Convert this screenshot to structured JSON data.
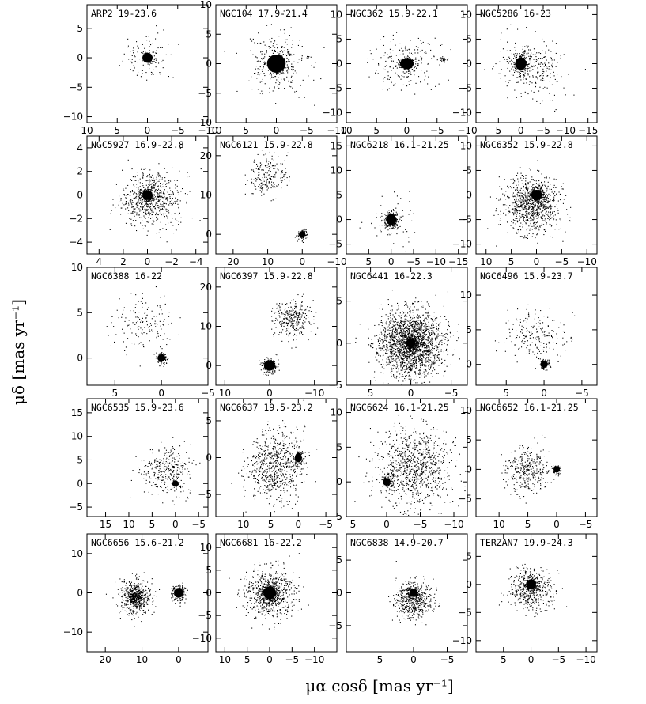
{
  "figure": {
    "ylabel": "μδ [mas yr⁻¹]",
    "xlabel": "μα cosδ [mas yr⁻¹]"
  },
  "chart_data": [
    {
      "type": "scatter",
      "label": "ARP2 19-23.6",
      "xlim": [
        10,
        -10
      ],
      "ylim": [
        -11,
        9
      ],
      "xticks": [
        10,
        5,
        0,
        -5,
        -10
      ],
      "yticks": [
        5,
        0,
        -5,
        -10
      ],
      "clusters": [
        {
          "x": 0,
          "y": 0,
          "r": 1.2,
          "n": 60
        },
        {
          "x": 0,
          "y": 0,
          "r": 4,
          "n": 90
        }
      ]
    },
    {
      "type": "scatter",
      "label": "NGC104 17.9-21.4",
      "xlim": [
        10,
        -10
      ],
      "ylim": [
        -10,
        10
      ],
      "xticks": [
        10,
        5,
        0,
        -5,
        -10
      ],
      "yticks": [
        10,
        5,
        0,
        -5,
        -10
      ],
      "clusters": [
        {
          "x": 0,
          "y": 0,
          "r": 2.2,
          "n": 200
        },
        {
          "x": -5.2,
          "y": 1.2,
          "r": 0.4,
          "n": 8
        },
        {
          "x": 0,
          "y": 0,
          "r": 5,
          "n": 200
        }
      ]
    },
    {
      "type": "scatter",
      "label": "NGC362 15.9-22.1",
      "xlim": [
        10,
        -10
      ],
      "ylim": [
        -12,
        12
      ],
      "xticks": [
        10,
        5,
        0,
        -5,
        -10
      ],
      "yticks": [
        10,
        5,
        0,
        -5,
        -10
      ],
      "clusters": [
        {
          "x": 0,
          "y": 0,
          "r": 1.6,
          "n": 120
        },
        {
          "x": -6,
          "y": 1,
          "r": 0.5,
          "n": 25
        },
        {
          "x": 0,
          "y": 0,
          "r": 5,
          "n": 200
        }
      ]
    },
    {
      "type": "scatter",
      "label": "NGC5286 16-23",
      "xlim": [
        10,
        -17
      ],
      "ylim": [
        -12,
        12
      ],
      "xticks": [
        5,
        0,
        -5,
        -10,
        -15
      ],
      "yticks": [
        10,
        5,
        0,
        -5,
        -10
      ],
      "clusters": [
        {
          "x": 0,
          "y": 0,
          "r": 1.8,
          "n": 150
        },
        {
          "x": -4,
          "y": -1.5,
          "r": 5,
          "n": 160
        },
        {
          "x": 0,
          "y": 0,
          "r": 5,
          "n": 150
        }
      ]
    },
    {
      "type": "scatter",
      "label": "NGC5927 16.9-22.8",
      "xlim": [
        5,
        -5
      ],
      "ylim": [
        -5,
        5
      ],
      "xticks": [
        4,
        2,
        0,
        -2,
        -4
      ],
      "yticks": [
        4,
        2,
        0,
        -2,
        -4
      ],
      "clusters": [
        {
          "x": 0,
          "y": 0,
          "r": 0.6,
          "n": 150
        },
        {
          "x": -0.3,
          "y": -0.3,
          "r": 2.2,
          "n": 600
        }
      ]
    },
    {
      "type": "scatter",
      "label": "NGC6121 15.9-22.8",
      "xlim": [
        25,
        -10
      ],
      "ylim": [
        -5,
        25
      ],
      "xticks": [
        20,
        10,
        0,
        -10
      ],
      "yticks": [
        20,
        10,
        0
      ],
      "clusters": [
        {
          "x": 0,
          "y": 0,
          "r": 1.2,
          "n": 100
        },
        {
          "x": 10,
          "y": 15,
          "r": 5,
          "n": 200
        }
      ]
    },
    {
      "type": "scatter",
      "label": "NGC6218 16.1-21.25",
      "xlim": [
        10,
        -17
      ],
      "ylim": [
        -7,
        17
      ],
      "xticks": [
        5,
        0,
        -5,
        -10,
        -15
      ],
      "yticks": [
        15,
        10,
        5,
        0,
        -5
      ],
      "clusters": [
        {
          "x": 0,
          "y": 0,
          "r": 1.6,
          "n": 220
        },
        {
          "x": 0,
          "y": 0,
          "r": 5,
          "n": 60
        }
      ]
    },
    {
      "type": "scatter",
      "label": "NGC6352 15.9-22.8",
      "xlim": [
        12,
        -12
      ],
      "ylim": [
        -12,
        12
      ],
      "xticks": [
        10,
        5,
        0,
        -5,
        -10
      ],
      "yticks": [
        10,
        5,
        0,
        -5,
        -10
      ],
      "clusters": [
        {
          "x": 0,
          "y": 0,
          "r": 1.5,
          "n": 140
        },
        {
          "x": 1,
          "y": -2,
          "r": 5,
          "n": 900
        }
      ]
    },
    {
      "type": "scatter",
      "label": "NGC6388 16-22",
      "xlim": [
        8,
        -5
      ],
      "ylim": [
        -3,
        10
      ],
      "xticks": [
        5,
        0,
        -5
      ],
      "yticks": [
        10,
        5,
        0
      ],
      "clusters": [
        {
          "x": 0,
          "y": 0,
          "r": 0.6,
          "n": 80
        },
        {
          "x": 2,
          "y": 4,
          "r": 3,
          "n": 150
        }
      ]
    },
    {
      "type": "scatter",
      "label": "NGC6397 15.9-22.8",
      "xlim": [
        12,
        -15
      ],
      "ylim": [
        -5,
        25
      ],
      "xticks": [
        10,
        0,
        -10
      ],
      "yticks": [
        20,
        10,
        0
      ],
      "clusters": [
        {
          "x": 0,
          "y": 0,
          "r": 1.8,
          "n": 160
        },
        {
          "x": -5,
          "y": 12,
          "r": 4,
          "n": 300
        }
      ]
    },
    {
      "type": "scatter",
      "label": "NGC6441 16-22.3",
      "xlim": [
        8,
        -7
      ],
      "ylim": [
        -5,
        9
      ],
      "xticks": [
        5,
        0,
        -5
      ],
      "yticks": [
        5,
        0,
        -5
      ],
      "clusters": [
        {
          "x": 0,
          "y": 0,
          "r": 0.8,
          "n": 180
        },
        {
          "x": 0,
          "y": 0,
          "r": 3.5,
          "n": 2000
        }
      ]
    },
    {
      "type": "scatter",
      "label": "NGC6496 15.9-23.7",
      "xlim": [
        9,
        -7
      ],
      "ylim": [
        -3,
        14
      ],
      "xticks": [
        5,
        0,
        -5
      ],
      "yticks": [
        10,
        5,
        0
      ],
      "clusters": [
        {
          "x": 0,
          "y": 0,
          "r": 0.7,
          "n": 60
        },
        {
          "x": 1,
          "y": 4,
          "r": 3.5,
          "n": 200
        }
      ]
    },
    {
      "type": "scatter",
      "label": "NGC6535 15.9-23.6",
      "xlim": [
        19,
        -7
      ],
      "ylim": [
        -7,
        18
      ],
      "xticks": [
        15,
        10,
        5,
        0,
        -5
      ],
      "yticks": [
        15,
        10,
        5,
        0,
        -5
      ],
      "clusters": [
        {
          "x": 0,
          "y": 0,
          "r": 0.8,
          "n": 40
        },
        {
          "x": 2,
          "y": 3,
          "r": 5,
          "n": 300
        }
      ]
    },
    {
      "type": "scatter",
      "label": "NGC6637 19.5-23.2",
      "xlim": [
        15,
        -7
      ],
      "ylim": [
        -8,
        8
      ],
      "xticks": [
        10,
        5,
        0,
        -5
      ],
      "yticks": [
        5,
        0,
        -5
      ],
      "clusters": [
        {
          "x": 0,
          "y": 0,
          "r": 0.9,
          "n": 80
        },
        {
          "x": 4,
          "y": -1,
          "r": 4.5,
          "n": 700
        }
      ]
    },
    {
      "type": "scatter",
      "label": "NGC6624 16.1-21.25",
      "xlim": [
        6,
        -12
      ],
      "ylim": [
        -5,
        12
      ],
      "xticks": [
        5,
        0,
        -5,
        -10
      ],
      "yticks": [
        10,
        5,
        0,
        -5
      ],
      "clusters": [
        {
          "x": 0,
          "y": 0,
          "r": 0.8,
          "n": 80
        },
        {
          "x": -4,
          "y": 2,
          "r": 5,
          "n": 900
        }
      ]
    },
    {
      "type": "scatter",
      "label": "NGC6652 16.1-21.25",
      "xlim": [
        14,
        -7
      ],
      "ylim": [
        -8,
        12
      ],
      "xticks": [
        10,
        5,
        0,
        -5
      ],
      "yticks": [
        10,
        5,
        0,
        -5
      ],
      "clusters": [
        {
          "x": 0,
          "y": 0,
          "r": 0.7,
          "n": 60
        },
        {
          "x": 5,
          "y": 0,
          "r": 3.5,
          "n": 350
        }
      ]
    },
    {
      "type": "scatter",
      "label": "NGC6656 15.6-21.2",
      "xlim": [
        25,
        -8
      ],
      "ylim": [
        -15,
        15
      ],
      "xticks": [
        20,
        10,
        0
      ],
      "yticks": [
        10,
        0,
        -10
      ],
      "clusters": [
        {
          "x": 0,
          "y": 0,
          "r": 1.8,
          "n": 160
        },
        {
          "x": 12,
          "y": -1,
          "r": 4,
          "n": 450
        },
        {
          "x": 12,
          "y": -1,
          "r": 1.8,
          "n": 200
        }
      ]
    },
    {
      "type": "scatter",
      "label": "NGC6681 16-22.2",
      "xlim": [
        12,
        -15
      ],
      "ylim": [
        -13,
        13
      ],
      "xticks": [
        10,
        5,
        0,
        -5,
        -10
      ],
      "yticks": [
        10,
        5,
        0,
        -5,
        -10
      ],
      "clusters": [
        {
          "x": 0,
          "y": 0,
          "r": 2,
          "n": 220
        },
        {
          "x": 0,
          "y": 0,
          "r": 5,
          "n": 600
        }
      ]
    },
    {
      "type": "scatter",
      "label": "NGC6838 14.9-20.7",
      "xlim": [
        10,
        -8
      ],
      "ylim": [
        -9,
        9
      ],
      "xticks": [
        5,
        0,
        -5
      ],
      "yticks": [
        5,
        0,
        -5
      ],
      "clusters": [
        {
          "x": 0,
          "y": 0,
          "r": 0.9,
          "n": 120
        },
        {
          "x": 0,
          "y": -1,
          "r": 2.5,
          "n": 500
        }
      ]
    },
    {
      "type": "scatter",
      "label": "TERZAN7 19.9-24.3",
      "xlim": [
        10,
        -12
      ],
      "ylim": [
        -12,
        9
      ],
      "xticks": [
        5,
        0,
        -5,
        -10
      ],
      "yticks": [
        5,
        0,
        -5,
        -10
      ],
      "clusters": [
        {
          "x": 0,
          "y": 0,
          "r": 1.3,
          "n": 80
        },
        {
          "x": 0,
          "y": -1,
          "r": 3.5,
          "n": 450
        }
      ]
    }
  ]
}
